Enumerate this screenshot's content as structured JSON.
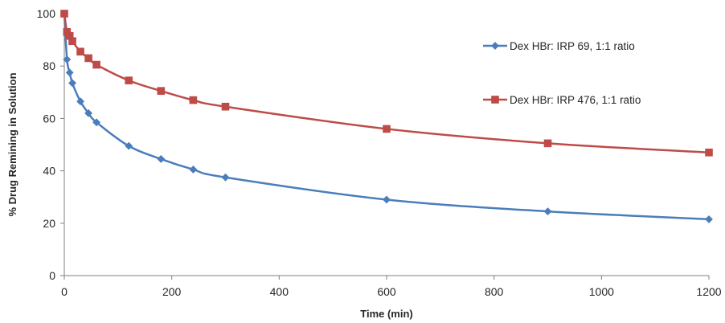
{
  "chart_data": {
    "type": "line",
    "title": "",
    "xlabel": "Time (min)",
    "ylabel": "% Drug Remining in Solution",
    "xlim": [
      0,
      1200
    ],
    "ylim": [
      0,
      100
    ],
    "x_ticks": [
      0,
      200,
      400,
      600,
      800,
      1000,
      1200
    ],
    "y_ticks": [
      0,
      20,
      40,
      60,
      80,
      100
    ],
    "grid": false,
    "legend_position": "right",
    "series": [
      {
        "name": "Dex HBr: IRP 69, 1:1 ratio",
        "color": "#4a7ebb",
        "marker": "diamond",
        "x": [
          0,
          5,
          10,
          15,
          30,
          45,
          60,
          120,
          180,
          240,
          300,
          600,
          900,
          1200
        ],
        "y": [
          100,
          82.5,
          77.5,
          73.5,
          66.5,
          62,
          58.5,
          49.5,
          44.5,
          40.5,
          37.5,
          29,
          24.5,
          21.5
        ]
      },
      {
        "name": "Dex HBr: IRP 476, 1:1 ratio",
        "color": "#be4b48",
        "marker": "square",
        "x": [
          0,
          5,
          10,
          15,
          30,
          45,
          60,
          120,
          180,
          240,
          300,
          600,
          900,
          1200
        ],
        "y": [
          100,
          93,
          91.5,
          89.5,
          85.5,
          83,
          80.5,
          74.5,
          70.5,
          67,
          64.5,
          56,
          50.5,
          47
        ]
      }
    ]
  }
}
